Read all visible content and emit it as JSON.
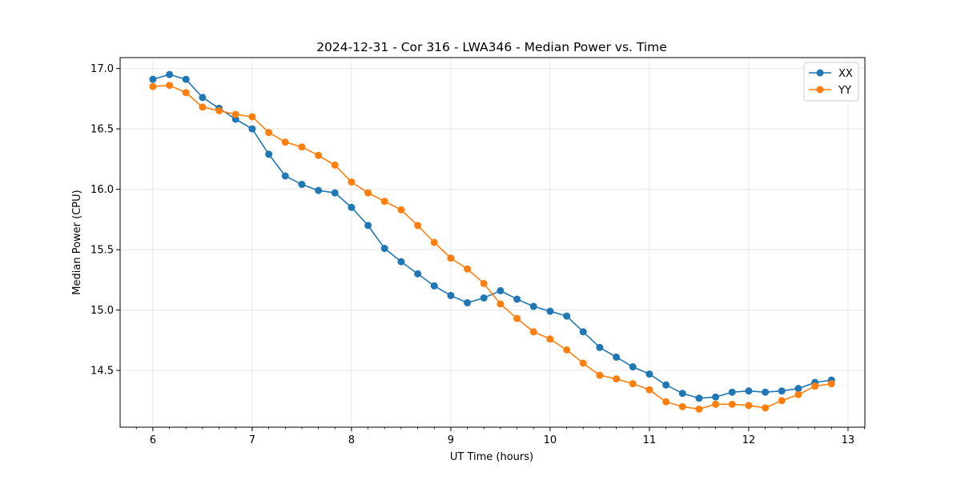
{
  "chart_data": {
    "type": "line",
    "title": "2024-12-31 - Cor 316 - LWA346 - Median Power vs. Time",
    "xlabel": "UT Time (hours)",
    "ylabel": "Median Power (CPU)",
    "xlim": [
      5.67,
      13.17
    ],
    "ylim": [
      14.03,
      17.09
    ],
    "xticks": [
      6,
      7,
      8,
      9,
      10,
      11,
      12,
      13
    ],
    "xtick_labels": [
      "6",
      "7",
      "8",
      "9",
      "10",
      "11",
      "12",
      "13"
    ],
    "yticks": [
      14.5,
      15.0,
      15.5,
      16.0,
      16.5,
      17.0
    ],
    "ytick_labels": [
      "14.5",
      "15.0",
      "15.5",
      "16.0",
      "16.5",
      "17.0"
    ],
    "grid": true,
    "legend_position": "top-right",
    "x": [
      6.0,
      6.167,
      6.333,
      6.5,
      6.667,
      6.833,
      7.0,
      7.167,
      7.333,
      7.5,
      7.667,
      7.833,
      8.0,
      8.167,
      8.333,
      8.5,
      8.667,
      8.833,
      9.0,
      9.167,
      9.333,
      9.5,
      9.667,
      9.833,
      10.0,
      10.167,
      10.333,
      10.5,
      10.667,
      10.833,
      11.0,
      11.167,
      11.333,
      11.5,
      11.667,
      11.833,
      12.0,
      12.167,
      12.333,
      12.5,
      12.667,
      12.833
    ],
    "series": [
      {
        "name": "XX",
        "color": "#1f77b4",
        "values": [
          16.91,
          16.95,
          16.91,
          16.76,
          16.67,
          16.58,
          16.5,
          16.29,
          16.11,
          16.04,
          15.99,
          15.97,
          15.85,
          15.7,
          15.51,
          15.4,
          15.3,
          15.2,
          15.12,
          15.06,
          15.1,
          15.16,
          15.09,
          15.03,
          14.99,
          14.95,
          14.82,
          14.69,
          14.61,
          14.53,
          14.47,
          14.38,
          14.31,
          14.27,
          14.28,
          14.32,
          14.33,
          14.32,
          14.33,
          14.35,
          14.4,
          14.42
        ]
      },
      {
        "name": "YY",
        "color": "#ff7f0e",
        "values": [
          16.85,
          16.86,
          16.8,
          16.68,
          16.65,
          16.62,
          16.6,
          16.47,
          16.39,
          16.35,
          16.28,
          16.2,
          16.06,
          15.97,
          15.9,
          15.83,
          15.7,
          15.56,
          15.43,
          15.34,
          15.22,
          15.05,
          14.93,
          14.82,
          14.76,
          14.67,
          14.56,
          14.46,
          14.43,
          14.39,
          14.34,
          14.24,
          14.2,
          14.18,
          14.22,
          14.22,
          14.21,
          14.19,
          14.25,
          14.3,
          14.37,
          14.39
        ]
      }
    ]
  }
}
